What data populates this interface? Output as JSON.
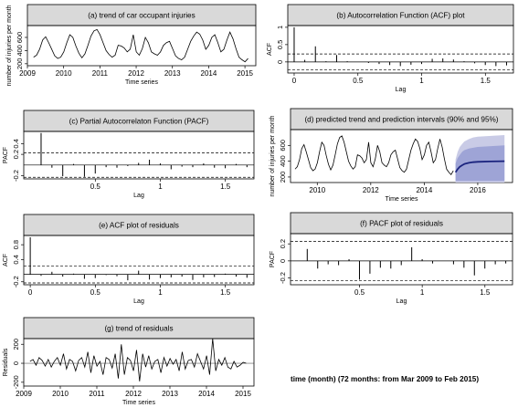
{
  "chart_data": [
    {
      "id": "a",
      "type": "line",
      "title": "(a) trend of car occupant injuries",
      "xlabel": "Time series",
      "ylabel": "number of injuries per month",
      "xlim": [
        2009,
        2015.3
      ],
      "ylim": [
        170,
        780
      ],
      "xticks": [
        2009,
        2010,
        2011,
        2012,
        2013,
        2014,
        2015
      ],
      "yticks": [
        200,
        400,
        600
      ],
      "x_start": 2009.17,
      "x_step": 0.08333,
      "series": [
        {
          "values": [
            300,
            330,
            420,
            560,
            610,
            520,
            420,
            320,
            280,
            300,
            380,
            520,
            640,
            600,
            470,
            360,
            290,
            350,
            480,
            620,
            700,
            720,
            640,
            520,
            400,
            340,
            300,
            330,
            480,
            470,
            440,
            380,
            420,
            640,
            380,
            330,
            430,
            600,
            520,
            380,
            350,
            330,
            380,
            480,
            520,
            540,
            430,
            320,
            280,
            260,
            300,
            420,
            540,
            620,
            680,
            650,
            560,
            420,
            480,
            600,
            640,
            520,
            380,
            420,
            560,
            680,
            580,
            430,
            300,
            260,
            230,
            280
          ]
        }
      ]
    },
    {
      "id": "b",
      "type": "bar",
      "title": "(b) Autocorrelation Function (ACF) plot",
      "xlabel": "Lag",
      "ylabel": "ACF",
      "xlim": [
        -0.05,
        1.72
      ],
      "ylim": [
        -0.32,
        1.05
      ],
      "xticks": [
        0,
        0.5,
        1,
        1.5
      ],
      "yticks": [
        0,
        0.5,
        1
      ],
      "conf": [
        0.23,
        -0.23
      ],
      "lag_step": 0.0833,
      "values": [
        1.0,
        0.06,
        0.45,
        0.02,
        0.2,
        0.02,
        0.0,
        -0.03,
        -0.06,
        -0.09,
        -0.12,
        -0.08,
        -0.06,
        0.09,
        0.1,
        0.07,
        0.02,
        -0.04,
        -0.09,
        -0.12,
        -0.1
      ]
    },
    {
      "id": "c",
      "type": "bar",
      "title": "(c) Partial Autocorrelaton Function (PACF)",
      "xlabel": "Lag",
      "ylabel": "PACF",
      "xlim": [
        -0.05,
        1.72
      ],
      "ylim": [
        -0.26,
        0.63
      ],
      "xticks": [
        0.5,
        1,
        1.5
      ],
      "yticks": [
        -0.2,
        0.2,
        0.4
      ],
      "conf": [
        0.23,
        -0.23
      ],
      "lag_step": 0.0833,
      "values": [
        0.6,
        -0.05,
        -0.21,
        0.02,
        -0.22,
        -0.16,
        -0.04,
        -0.05,
        -0.02,
        0.04,
        0.1,
        0.03,
        -0.08,
        -0.03,
        -0.04,
        0.03,
        -0.05,
        -0.06,
        0.02,
        -0.04
      ]
    },
    {
      "id": "d",
      "type": "line",
      "title": "(d) predicted trend and prediction intervals (90% and 95%)",
      "xlabel": "Time series",
      "ylabel": "number of injuries per month",
      "xlim": [
        2009,
        2017.3
      ],
      "ylim": [
        130,
        800
      ],
      "xticks": [
        2010,
        2012,
        2014,
        2016
      ],
      "yticks": [
        200,
        400,
        600
      ],
      "x_start": 2009.17,
      "x_step": 0.08333,
      "series": [
        {
          "values": [
            300,
            330,
            420,
            560,
            610,
            520,
            420,
            320,
            280,
            300,
            380,
            520,
            640,
            600,
            470,
            360,
            290,
            350,
            480,
            620,
            700,
            720,
            640,
            520,
            400,
            340,
            300,
            330,
            480,
            470,
            440,
            380,
            420,
            640,
            380,
            330,
            430,
            600,
            520,
            380,
            350,
            330,
            380,
            480,
            520,
            540,
            430,
            320,
            280,
            260,
            300,
            420,
            540,
            620,
            680,
            650,
            560,
            420,
            480,
            600,
            640,
            520,
            380,
            420,
            560,
            680,
            580,
            430,
            300,
            260,
            230,
            280
          ]
        }
      ],
      "forecast": {
        "x": [
          2015.17,
          2015.25,
          2015.33,
          2015.42,
          2015.5,
          2015.67,
          2015.83,
          2016.0,
          2016.5,
          2017.0
        ],
        "mean": [
          260,
          300,
          330,
          350,
          365,
          380,
          388,
          392,
          397,
          400
        ],
        "lo90": [
          150,
          150,
          150,
          150,
          150,
          150,
          150,
          150,
          150,
          150
        ],
        "hi90": [
          370,
          440,
          480,
          520,
          540,
          560,
          570,
          580,
          590,
          600
        ],
        "lo95": [
          130,
          130,
          130,
          130,
          130,
          130,
          130,
          130,
          130,
          130
        ],
        "hi95": [
          420,
          520,
          580,
          620,
          650,
          680,
          700,
          710,
          720,
          730
        ]
      },
      "colors": {
        "band95": "#c9cbe6",
        "band90": "#9ea4d6",
        "mean": "#1a237e"
      }
    },
    {
      "id": "e",
      "type": "bar",
      "title": "(e) ACF plot of residuals",
      "xlabel": "Lag",
      "ylabel": "ACF",
      "xlim": [
        -0.05,
        1.72
      ],
      "ylim": [
        -0.28,
        1.05
      ],
      "xticks": [
        0,
        0.5,
        1,
        1.5
      ],
      "yticks": [
        -0.2,
        0.4,
        0.8
      ],
      "conf": [
        0.23,
        -0.23
      ],
      "lag_step": 0.0833,
      "values": [
        1.0,
        -0.04,
        0.07,
        -0.06,
        0.02,
        -0.12,
        -0.1,
        -0.02,
        -0.05,
        -0.16,
        0.1,
        -0.14,
        -0.1,
        -0.08,
        -0.06,
        -0.15,
        -0.08,
        -0.07,
        0.02,
        -0.06,
        -0.09
      ]
    },
    {
      "id": "f",
      "type": "bar",
      "title": "(f) PACF plot of residuals",
      "xlabel": "Lag",
      "ylabel": "PACF",
      "xlim": [
        -0.05,
        1.72
      ],
      "ylim": [
        -0.28,
        0.32
      ],
      "xticks": [
        0.5,
        1,
        1.5
      ],
      "yticks": [
        -0.2,
        0.0,
        0.2
      ],
      "conf": [
        0.23,
        -0.23
      ],
      "lag_step": 0.0833,
      "values": [
        0.14,
        -0.09,
        -0.04,
        -0.05,
        0.02,
        -0.22,
        -0.15,
        -0.08,
        -0.09,
        -0.05,
        0.16,
        0.02,
        -0.03,
        0.0,
        -0.04,
        -0.08,
        -0.17,
        -0.09,
        -0.04,
        -0.03
      ]
    },
    {
      "id": "g",
      "type": "line",
      "title": "(g) trend of residuals",
      "xlabel": "Time series",
      "ylabel": "Residuals",
      "xlim": [
        2009,
        2015.3
      ],
      "ylim": [
        -240,
        260
      ],
      "xticks": [
        2009,
        2010,
        2011,
        2012,
        2013,
        2014,
        2015
      ],
      "yticks": [
        -200,
        0,
        200
      ],
      "x_start": 2009.17,
      "x_step": 0.08333,
      "series": [
        {
          "values": [
            20,
            40,
            -20,
            60,
            30,
            -30,
            40,
            -40,
            20,
            60,
            -20,
            100,
            -60,
            40,
            20,
            -80,
            30,
            60,
            -40,
            120,
            -100,
            80,
            -30,
            20,
            -120,
            60,
            40,
            -50,
            100,
            -160,
            200,
            -120,
            60,
            30,
            -80,
            140,
            -190,
            100,
            -40,
            80,
            -60,
            20,
            40,
            -100,
            60,
            -30,
            50,
            -10,
            40,
            -80,
            120,
            -60,
            30,
            40,
            -40,
            100,
            20,
            -60,
            80,
            -120,
            260,
            -80,
            40,
            -20,
            60,
            -40,
            -60,
            20,
            -40,
            -20,
            10,
            0
          ]
        }
      ]
    }
  ],
  "footer_note": "time (month) (72 months: from Mar 2009 to Feb 2015)"
}
